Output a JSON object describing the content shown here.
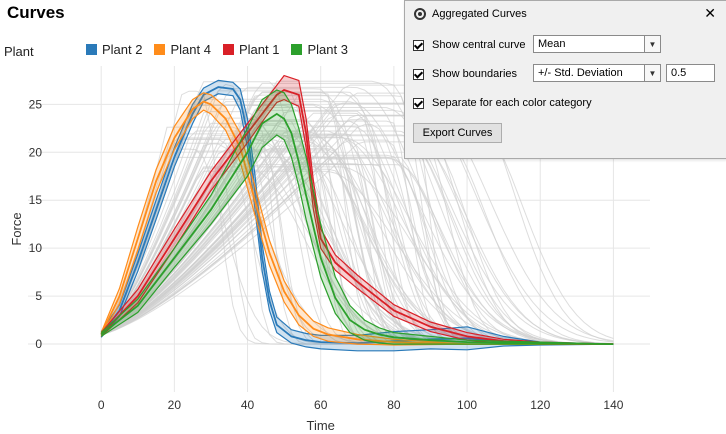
{
  "header": {
    "title": "Curves"
  },
  "legend": {
    "title": "Plant",
    "items": [
      {
        "label": "Plant 2",
        "color": "#2a7ab9"
      },
      {
        "label": "Plant 4",
        "color": "#ff8c1a"
      },
      {
        "label": "Plant 1",
        "color": "#d92027"
      },
      {
        "label": "Plant 3",
        "color": "#2ca02c"
      }
    ]
  },
  "panel": {
    "title": "Aggregated Curves",
    "close_icon": "close-icon",
    "show_central_label": "Show central curve",
    "show_central_checked": true,
    "central_value": "Mean",
    "show_boundaries_label": "Show boundaries",
    "show_boundaries_checked": true,
    "boundaries_value": "+/- Std. Deviation",
    "boundaries_factor": "0.5",
    "separate_label": "Separate for each color category",
    "separate_checked": true,
    "export_label": "Export Curves"
  },
  "chart_data": {
    "type": "line",
    "xlabel": "Time",
    "ylabel": "Force",
    "xlim": [
      -20,
      150
    ],
    "ylim": [
      -5,
      29
    ],
    "x_ticks": [
      "0",
      "20",
      "40",
      "60",
      "80",
      "100",
      "120",
      "140"
    ],
    "y_ticks": [
      "0",
      "5",
      "10",
      "15",
      "20",
      "25"
    ],
    "grid": true,
    "background_curves_color": "#cfcfcf",
    "series": [
      {
        "name": "Plant 2",
        "color": "#2a7ab9",
        "x": [
          0,
          5,
          10,
          15,
          20,
          25,
          28,
          32,
          36,
          38,
          40,
          42,
          44,
          46,
          48,
          52,
          56,
          60,
          70,
          80,
          90,
          100,
          110,
          120,
          140
        ],
        "mean": [
          1.0,
          3.5,
          8.5,
          14.0,
          19.5,
          24.0,
          26.0,
          26.8,
          26.6,
          25.5,
          22.0,
          16.0,
          9.0,
          4.5,
          2.0,
          0.8,
          0.4,
          0.2,
          0.1,
          0.3,
          0.5,
          0.6,
          0.3,
          0.1,
          0.0
        ],
        "lower": [
          0.7,
          2.9,
          7.6,
          13.0,
          18.5,
          23.0,
          25.3,
          26.1,
          25.9,
          24.4,
          20.5,
          14.2,
          7.6,
          3.5,
          1.2,
          0.1,
          -0.3,
          -0.5,
          -0.7,
          -0.7,
          -0.5,
          -0.6,
          -0.2,
          -0.1,
          0.0
        ],
        "upper": [
          1.3,
          4.1,
          9.4,
          15.0,
          20.5,
          25.0,
          26.7,
          27.5,
          27.3,
          26.6,
          23.5,
          17.8,
          10.4,
          5.5,
          2.8,
          1.5,
          1.1,
          0.9,
          0.9,
          1.3,
          1.5,
          1.8,
          0.8,
          0.2,
          0.0
        ]
      },
      {
        "name": "Plant 4",
        "color": "#ff8c1a",
        "x": [
          0,
          5,
          10,
          15,
          20,
          25,
          28,
          30,
          34,
          38,
          42,
          46,
          50,
          54,
          58,
          62,
          70,
          80,
          100,
          140
        ],
        "mean": [
          1.0,
          5.0,
          11.0,
          17.0,
          21.5,
          24.5,
          25.3,
          25.0,
          23.5,
          20.5,
          15.0,
          9.5,
          5.5,
          3.0,
          1.6,
          1.0,
          0.5,
          0.2,
          0.0,
          0.0
        ],
        "lower": [
          0.8,
          4.2,
          9.8,
          15.8,
          20.3,
          23.5,
          24.4,
          24.0,
          22.3,
          19.0,
          13.5,
          8.2,
          4.4,
          2.0,
          0.8,
          0.3,
          0.0,
          -0.1,
          0.0,
          0.0
        ],
        "upper": [
          1.2,
          5.8,
          12.2,
          18.2,
          22.7,
          25.5,
          26.2,
          26.0,
          24.7,
          22.0,
          16.5,
          10.8,
          6.6,
          4.0,
          2.4,
          1.7,
          1.0,
          0.5,
          0.0,
          0.0
        ]
      },
      {
        "name": "Plant 1",
        "color": "#d92027",
        "x": [
          0,
          10,
          20,
          30,
          40,
          45,
          48,
          50,
          54,
          56,
          58,
          60,
          64,
          70,
          80,
          90,
          100,
          110,
          120,
          140
        ],
        "mean": [
          1.0,
          5.0,
          11.0,
          17.0,
          22.0,
          24.5,
          26.0,
          26.5,
          26.0,
          22.0,
          15.5,
          11.0,
          8.5,
          6.5,
          3.5,
          1.8,
          0.8,
          0.3,
          0.1,
          0.0
        ],
        "lower": [
          0.8,
          4.3,
          10.0,
          16.0,
          21.0,
          23.7,
          25.2,
          25.5,
          24.8,
          20.5,
          14.0,
          10.0,
          7.7,
          5.8,
          2.9,
          1.3,
          0.4,
          0.1,
          0.0,
          0.0
        ],
        "upper": [
          1.2,
          5.7,
          12.0,
          18.0,
          23.0,
          25.5,
          27.0,
          28.0,
          27.5,
          23.5,
          17.0,
          12.0,
          9.3,
          7.2,
          4.1,
          2.3,
          1.2,
          0.5,
          0.2,
          0.0
        ]
      },
      {
        "name": "Plant 3",
        "color": "#2ca02c",
        "x": [
          0,
          10,
          20,
          30,
          40,
          44,
          48,
          50,
          52,
          54,
          56,
          60,
          64,
          68,
          72,
          76,
          80,
          90,
          100,
          120,
          140
        ],
        "mean": [
          1.0,
          4.0,
          9.0,
          14.0,
          20.0,
          23.0,
          24.0,
          23.5,
          22.0,
          19.0,
          15.5,
          9.0,
          4.8,
          2.5,
          1.5,
          1.0,
          0.7,
          0.4,
          0.2,
          0.1,
          0.0
        ],
        "lower": [
          0.8,
          3.3,
          8.0,
          12.5,
          17.5,
          20.5,
          21.8,
          21.3,
          19.5,
          16.5,
          13.0,
          7.0,
          3.2,
          1.2,
          0.4,
          0.1,
          0.0,
          0.0,
          0.0,
          0.0,
          0.0
        ],
        "upper": [
          1.2,
          4.7,
          10.0,
          15.5,
          22.5,
          25.5,
          26.5,
          26.2,
          25.0,
          22.5,
          19.5,
          12.5,
          7.0,
          4.0,
          2.5,
          1.7,
          1.2,
          0.8,
          0.4,
          0.2,
          0.0
        ]
      }
    ]
  }
}
